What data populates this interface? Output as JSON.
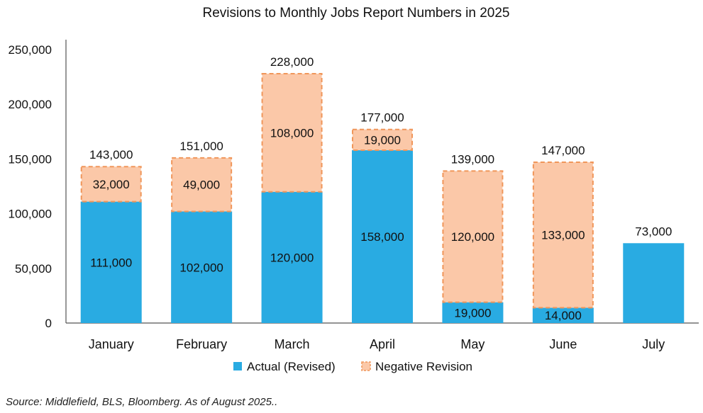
{
  "chart_data": {
    "type": "bar",
    "stacked": true,
    "title": "Revisions to Monthly Jobs Report Numbers in 2025",
    "categories": [
      "January",
      "February",
      "March",
      "April",
      "May",
      "June",
      "July"
    ],
    "series": [
      {
        "name": "Actual (Revised)",
        "values": [
          111000,
          102000,
          120000,
          158000,
          19000,
          14000,
          73000
        ],
        "labels": [
          "111,000",
          "102,000",
          "120,000",
          "158,000",
          "19,000",
          "14,000",
          ""
        ],
        "color": "#29abe2"
      },
      {
        "name": "Negative Revision",
        "values": [
          32000,
          49000,
          108000,
          19000,
          120000,
          133000,
          0
        ],
        "labels": [
          "32,000",
          "49,000",
          "108,000",
          "19,000",
          "120,000",
          "133,000",
          ""
        ],
        "color": "#fbc8a8",
        "border_color": "#f0965a",
        "border_style": "dashed"
      }
    ],
    "total_labels": [
      "143,000",
      "151,000",
      "228,000",
      "177,000",
      "139,000",
      "147,000",
      "73,000"
    ],
    "ylim": [
      0,
      250000
    ],
    "yticks": [
      0,
      50000,
      100000,
      150000,
      200000,
      250000
    ],
    "ytick_labels": [
      "0",
      "50,000",
      "100,000",
      "150,000",
      "200,000",
      "250,000"
    ],
    "xlabel": "",
    "ylabel": "",
    "grid": false,
    "legend_position": "bottom"
  },
  "source_note": "Source: Middlefield, BLS, Bloomberg. As of August 2025.."
}
